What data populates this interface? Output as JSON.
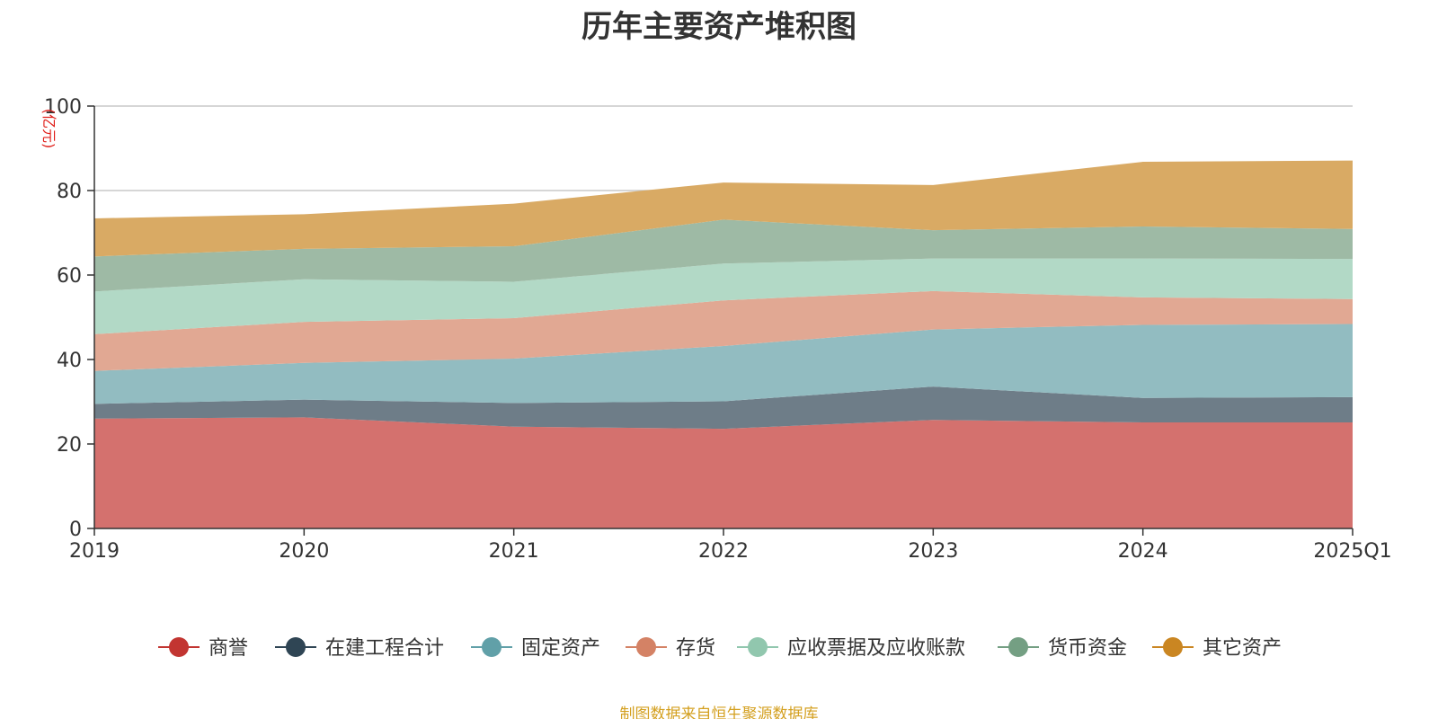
{
  "chart_data": {
    "type": "area",
    "stacked": true,
    "title": "历年主要资产堆积图",
    "y_unit": "(亿元)",
    "categories": [
      "2019",
      "2020",
      "2021",
      "2022",
      "2023",
      "2024",
      "2025Q1"
    ],
    "ylim": [
      0,
      100
    ],
    "yticks": [
      0,
      20,
      40,
      60,
      80,
      100
    ],
    "grid": true,
    "legend_position": "bottom",
    "series": [
      {
        "name": "商誉",
        "color": "#c23531",
        "area_color": "#d4716e",
        "values": [
          26.0,
          26.3,
          24.1,
          23.6,
          25.7,
          25.1,
          25.1
        ]
      },
      {
        "name": "在建工程合计",
        "color": "#2f4554",
        "area_color": "#6e7d88",
        "values": [
          3.5,
          4.2,
          5.6,
          6.5,
          7.9,
          5.8,
          6.0
        ]
      },
      {
        "name": "固定资产",
        "color": "#61a0a8",
        "area_color": "#92bcc1",
        "values": [
          7.8,
          8.7,
          10.5,
          13.1,
          13.5,
          17.3,
          17.3
        ]
      },
      {
        "name": "存货",
        "color": "#d48265",
        "area_color": "#e1a893",
        "values": [
          8.7,
          9.7,
          9.6,
          10.8,
          9.1,
          6.5,
          5.9
        ]
      },
      {
        "name": "应收票据及应收账款",
        "color": "#91c7ae",
        "area_color": "#b2d9c6",
        "values": [
          10.1,
          10.1,
          8.6,
          8.7,
          7.7,
          9.2,
          9.5
        ]
      },
      {
        "name": "货币资金",
        "color": "#749f83",
        "area_color": "#9ebaa5",
        "values": [
          8.3,
          7.2,
          8.4,
          10.4,
          6.7,
          7.6,
          7.1
        ]
      },
      {
        "name": "其它资产",
        "color": "#ca8622",
        "area_color": "#d9aa64",
        "values": [
          9.0,
          8.2,
          10.1,
          8.8,
          10.7,
          15.3,
          16.2
        ]
      }
    ]
  },
  "footer": {
    "source": "制图数据来自恒生聚源数据库"
  }
}
